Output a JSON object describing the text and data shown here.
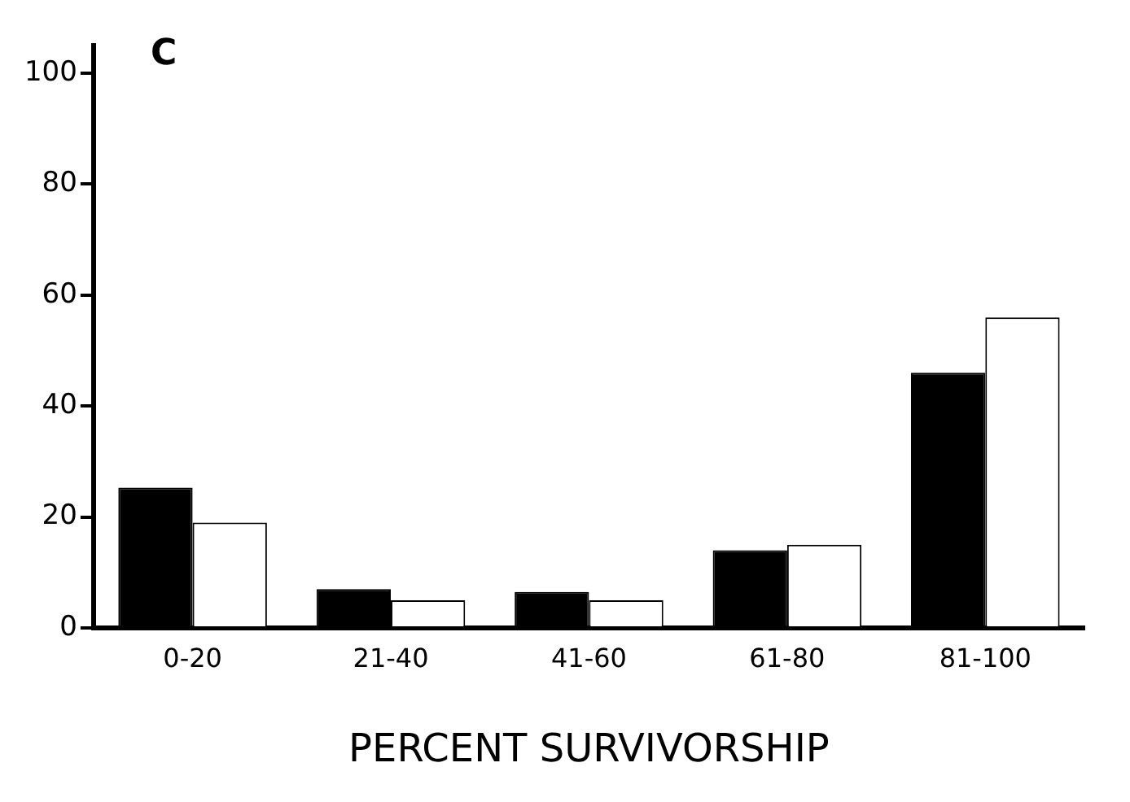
{
  "chart_data": {
    "type": "bar",
    "xlabel": "PERCENT SURVIVORSHIP",
    "annotations": [
      "C"
    ],
    "categories": [
      "0-20",
      "21-40",
      "41-60",
      "61-80",
      "81-100"
    ],
    "series": [
      {
        "color": "#000000",
        "values": [
          25.3,
          7,
          6.5,
          14,
          46
        ]
      },
      {
        "color": "#ffffff",
        "values": [
          19,
          5,
          5,
          15,
          56
        ]
      }
    ],
    "ylim": [
      0,
      105
    ],
    "yticks": [
      0,
      20,
      40,
      60,
      80,
      100
    ],
    "grid": false,
    "legend": false
  }
}
